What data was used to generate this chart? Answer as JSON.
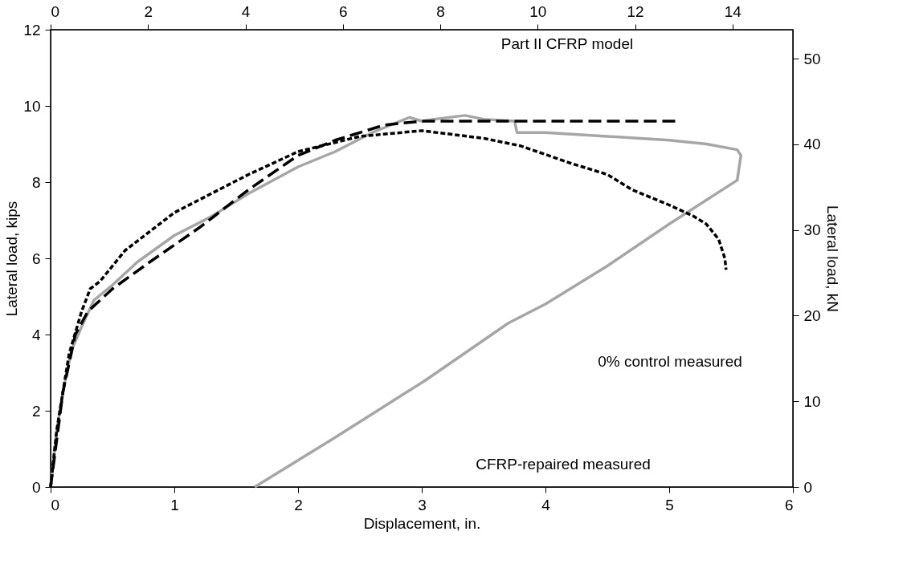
{
  "chart_data": {
    "type": "line",
    "xlabel": "Displacement, in.",
    "ylabel": "Lateral load, kips",
    "y2label": "Lateral load, kN",
    "xlim": [
      0,
      6
    ],
    "xticks": [
      {
        "value": 0,
        "label": "0"
      },
      {
        "value": 1,
        "label": "1"
      },
      {
        "value": 2,
        "label": "2"
      },
      {
        "value": 3,
        "label": "3"
      },
      {
        "value": 4,
        "label": "4"
      },
      {
        "value": 5,
        "label": "5"
      },
      {
        "value": 6,
        "label": "6"
      }
    ],
    "ylim": [
      0,
      12
    ],
    "yticks": [
      0,
      2,
      4,
      6,
      8,
      10,
      12
    ],
    "x2lim": [
      0,
      15.24
    ],
    "x2ticks": [
      0,
      2,
      4,
      6,
      8,
      10,
      12,
      14
    ],
    "y2lim": [
      0,
      53.38
    ],
    "y2ticks": [
      0,
      10,
      20,
      30,
      40,
      50
    ],
    "grid": false,
    "marker": "none",
    "series": [
      {
        "color": "#a6a6a6",
        "line_style": "solid",
        "x": [
          0,
          0.05,
          0.1,
          0.17,
          0.25,
          0.35,
          0.5,
          0.7,
          1,
          1.3,
          1.6,
          2,
          2.3,
          2.6,
          2.9,
          3,
          3.1,
          3.35,
          3.5,
          3.75,
          3.77,
          4,
          4.5,
          5,
          5.3,
          5.55,
          5.58,
          5.55,
          5,
          4.5,
          4,
          3.7,
          3.03,
          2.3,
          1.65
        ],
        "values": [
          0,
          1.5,
          2.5,
          3.6,
          4.2,
          4.9,
          5.3,
          5.9,
          6.6,
          7.1,
          7.7,
          8.4,
          8.8,
          9.3,
          9.7,
          9.6,
          9.65,
          9.75,
          9.65,
          9.6,
          9.3,
          9.3,
          9.2,
          9.1,
          9.0,
          8.85,
          8.7,
          8.05,
          6.9,
          5.8,
          4.8,
          4.3,
          2.8,
          1.3,
          0
        ]
      },
      {
        "color": "#000000",
        "line_style": "dotted",
        "x": [
          0,
          0.05,
          0.15,
          0.25,
          0.32,
          0.4,
          0.6,
          0.8,
          1,
          1.3,
          1.6,
          2,
          2.5,
          3,
          3.5,
          3.8,
          4.2,
          4.5,
          4.7,
          5,
          5.2,
          5.3,
          5.4,
          5.45,
          5.46
        ],
        "values": [
          0,
          1.5,
          3.5,
          4.6,
          5.2,
          5.4,
          6.2,
          6.7,
          7.2,
          7.7,
          8.2,
          8.8,
          9.2,
          9.35,
          9.15,
          8.95,
          8.5,
          8.2,
          7.8,
          7.4,
          7.1,
          6.9,
          6.5,
          6.0,
          5.7
        ]
      },
      {
        "color": "#000000",
        "line_style": "dashed",
        "x": [
          0,
          0.1,
          0.2,
          0.3,
          0.5,
          0.8,
          1.2,
          1.6,
          2,
          2.3,
          2.7,
          3,
          4,
          5.05
        ],
        "values": [
          0,
          2.5,
          4.0,
          4.6,
          5.2,
          5.9,
          6.8,
          7.8,
          8.7,
          9.1,
          9.5,
          9.6,
          9.6,
          9.6
        ]
      }
    ],
    "annotations": [
      "Part II CFRP model",
      "0% control measured",
      "CFRP-repaired measured"
    ]
  }
}
